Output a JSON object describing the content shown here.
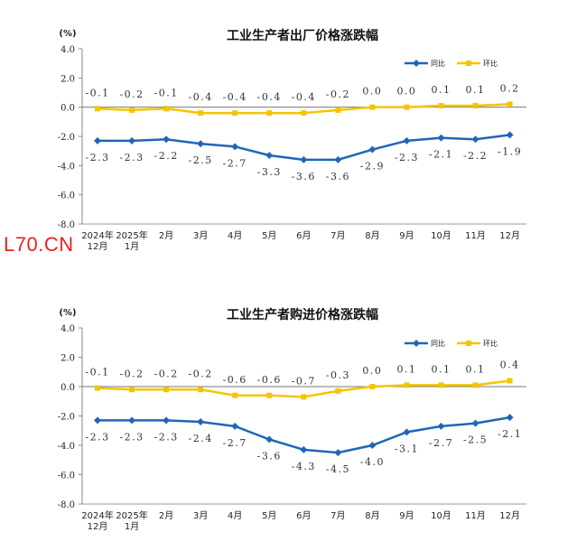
{
  "watermark": "L70.CN",
  "chart_data": [
    {
      "type": "line",
      "title": "工业生产者出厂价格涨跌幅",
      "unit": "(%)",
      "categories": [
        [
          "2024年",
          "12月"
        ],
        [
          "2025年",
          "1月"
        ],
        [
          "2月"
        ],
        [
          "3月"
        ],
        [
          "4月"
        ],
        [
          "5月"
        ],
        [
          "6月"
        ],
        [
          "7月"
        ],
        [
          "8月"
        ],
        [
          "9月"
        ],
        [
          "10月"
        ],
        [
          "11月"
        ],
        [
          "12月"
        ]
      ],
      "yticks": [
        "4.0",
        "2.0",
        "0.0",
        "-2.0",
        "-4.0",
        "-6.0",
        "-8.0"
      ],
      "ylim": [
        -8,
        4
      ],
      "legend_position": "top-right",
      "series": [
        {
          "name": "同比",
          "color": "#1f66b8",
          "marker": "diamond",
          "values": [
            -2.3,
            -2.3,
            -2.2,
            -2.5,
            -2.7,
            -3.3,
            -3.6,
            -3.6,
            -2.9,
            -2.3,
            -2.1,
            -2.2,
            -1.9
          ],
          "labels": [
            "-2.3",
            "-2.3",
            "-2.2",
            "-2.5",
            "-2.7",
            "-3.3",
            "-3.6",
            "-3.6",
            "-2.9",
            "-2.3",
            "-2.1",
            "-2.2",
            "-1.9"
          ]
        },
        {
          "name": "环比",
          "color": "#f5c400",
          "marker": "square",
          "values": [
            -0.1,
            -0.2,
            -0.1,
            -0.4,
            -0.4,
            -0.4,
            -0.4,
            -0.2,
            0.0,
            0.0,
            0.1,
            0.1,
            0.2
          ],
          "labels": [
            "-0.1",
            "-0.2",
            "-0.1",
            "-0.4",
            "-0.4",
            "-0.4",
            "-0.4",
            "-0.2",
            "0.0",
            "0.0",
            "0.1",
            "0.1",
            "0.2"
          ]
        }
      ]
    },
    {
      "type": "line",
      "title": "工业生产者购进价格涨跌幅",
      "unit": "(%)",
      "categories": [
        [
          "2024年",
          "12月"
        ],
        [
          "2025年",
          "1月"
        ],
        [
          "2月"
        ],
        [
          "3月"
        ],
        [
          "4月"
        ],
        [
          "5月"
        ],
        [
          "6月"
        ],
        [
          "7月"
        ],
        [
          "8月"
        ],
        [
          "9月"
        ],
        [
          "10月"
        ],
        [
          "11月"
        ],
        [
          "12月"
        ]
      ],
      "yticks": [
        "4.0",
        "2.0",
        "0.0",
        "-2.0",
        "-4.0",
        "-6.0",
        "-8.0"
      ],
      "ylim": [
        -8,
        4
      ],
      "legend_position": "top-right",
      "series": [
        {
          "name": "同比",
          "color": "#1f66b8",
          "marker": "diamond",
          "values": [
            -2.3,
            -2.3,
            -2.3,
            -2.4,
            -2.7,
            -3.6,
            -4.3,
            -4.5,
            -4.0,
            -3.1,
            -2.7,
            -2.5,
            -2.1
          ],
          "labels": [
            "-2.3",
            "-2.3",
            "-2.3",
            "-2.4",
            "-2.7",
            "-3.6",
            "-4.3",
            "-4.5",
            "-4.0",
            "-3.1",
            "-2.7",
            "-2.5",
            "-2.1"
          ]
        },
        {
          "name": "环比",
          "color": "#f5c400",
          "marker": "square",
          "values": [
            -0.1,
            -0.2,
            -0.2,
            -0.2,
            -0.6,
            -0.6,
            -0.7,
            -0.3,
            0.0,
            0.1,
            0.1,
            0.1,
            0.4
          ],
          "labels": [
            "-0.1",
            "-0.2",
            "-0.2",
            "-0.2",
            "-0.6",
            "-0.6",
            "-0.7",
            "-0.3",
            "0.0",
            "0.1",
            "0.1",
            "0.1",
            "0.4"
          ]
        }
      ]
    }
  ]
}
